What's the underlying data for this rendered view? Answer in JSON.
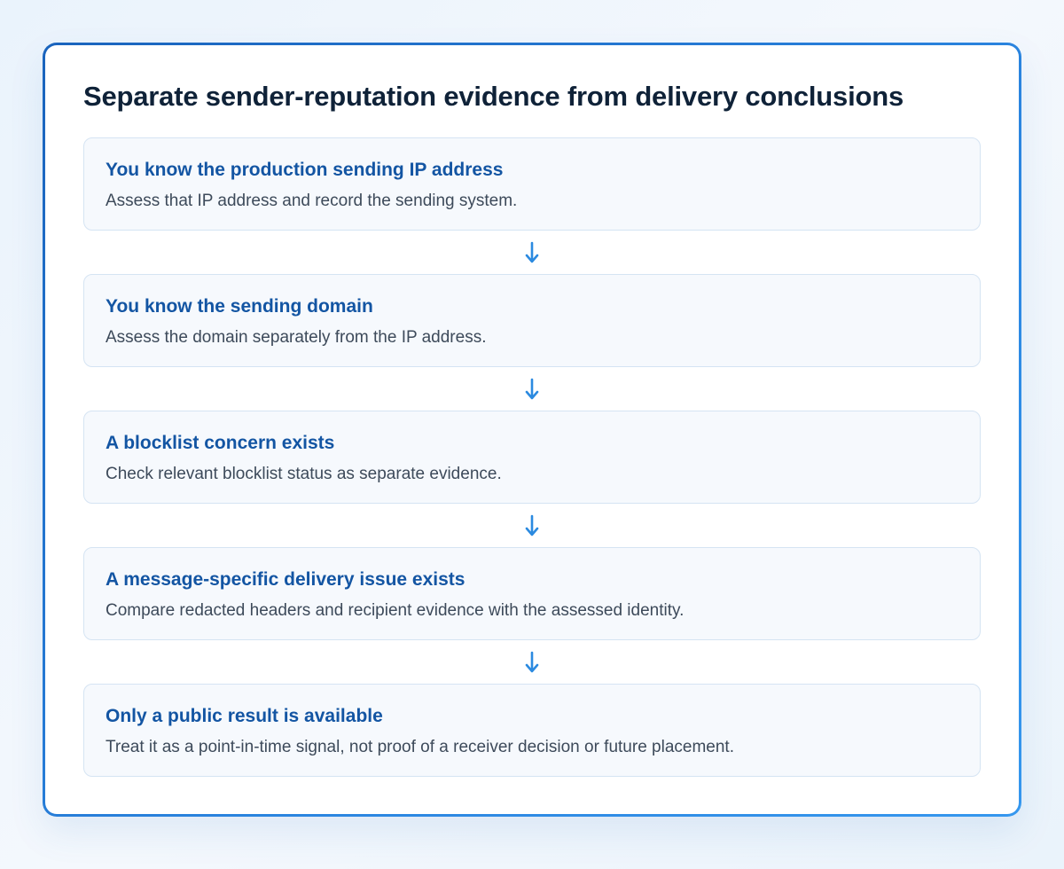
{
  "title": "Separate sender-reputation evidence from delivery conclusions",
  "steps": [
    {
      "title": "You know the production sending IP address",
      "description": "Assess that IP address and record the sending system."
    },
    {
      "title": "You know the sending domain",
      "description": "Assess the domain separately from the IP address."
    },
    {
      "title": "A blocklist concern exists",
      "description": "Check relevant blocklist status as separate evidence."
    },
    {
      "title": "A message-specific delivery issue exists",
      "description": "Compare redacted headers and recipient evidence with the assessed identity."
    },
    {
      "title": "Only a public result is available",
      "description": "Treat it as a point-in-time signal, not proof of a receiver decision or future placement."
    }
  ],
  "colors": {
    "accent": "#2a83de",
    "arrow": "#2b8ae0",
    "step_title": "#1355a3",
    "step_background": "#f6f9fd"
  },
  "icons": {
    "connector": "arrow-down-icon"
  }
}
